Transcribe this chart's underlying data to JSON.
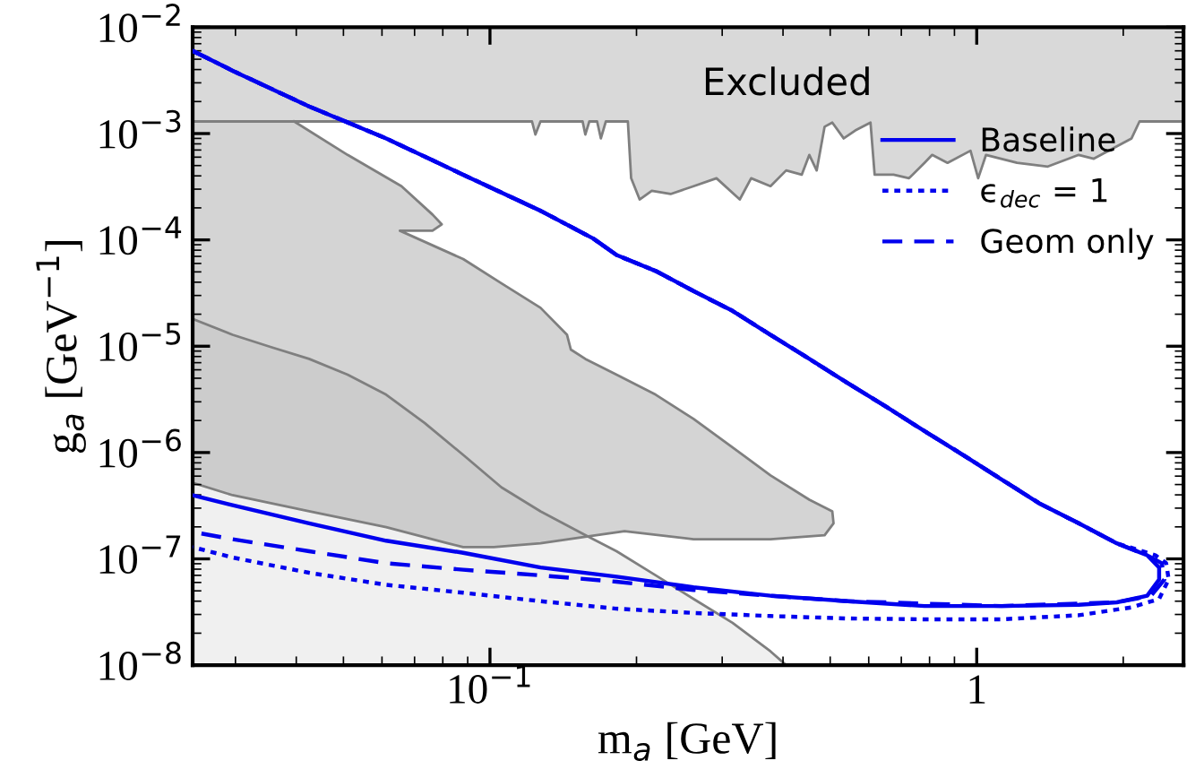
{
  "chart_data": {
    "type": "line",
    "xlabel": "m$_{a}$ [GeV]",
    "ylabel": "g$_{a}$ [GeV$^{−1}$]",
    "log": "xy",
    "xlim": [
      0.0245,
      2.66
    ],
    "ylim": [
      1e-08,
      0.01
    ],
    "xticks": [
      {
        "value": 0.1,
        "label": "10$^{−1}$"
      },
      1
    ],
    "yticks": [
      {
        "value": 1e-08,
        "label": "10$^{−8}$"
      },
      {
        "value": 1e-07,
        "label": "10$^{−7}$"
      },
      {
        "value": 1e-06,
        "label": "10$^{−6}$"
      },
      {
        "value": 1e-05,
        "label": "10$^{−5}$"
      },
      {
        "value": 0.0001,
        "label": "10$^{−4}$"
      },
      {
        "value": 0.001,
        "label": "10$^{−3}$"
      },
      {
        "value": 0.01,
        "label": "10$^{−2}$"
      }
    ],
    "legend": "right",
    "grid": false,
    "annotations": [
      "Excluded"
    ],
    "series": [
      {
        "type": "area",
        "color": "#d9d9d9",
        "x": [
          0.0245,
          0.122,
          0.124,
          0.127,
          0.155,
          0.157,
          0.16,
          0.166,
          0.169,
          0.173,
          0.192,
          0.195,
          0.203,
          0.215,
          0.235,
          0.262,
          0.292,
          0.326,
          0.344,
          0.377,
          0.406,
          0.437,
          0.453,
          0.469,
          0.487,
          0.505,
          0.533,
          0.563,
          0.605,
          0.617,
          0.675,
          0.726,
          0.781,
          0.81,
          0.871,
          0.971,
          1.007,
          1.045,
          1.21,
          1.4,
          1.62,
          1.74,
          2.08,
          2.16,
          2.66,
          2.66,
          0.0245
        ],
        "values": [
          0.0013,
          0.0013,
          0.00098,
          0.0013,
          0.0013,
          0.00098,
          0.0013,
          0.0013,
          0.0009,
          0.0013,
          0.0013,
          0.00038,
          0.00024,
          0.00029,
          0.00027,
          0.00032,
          0.00038,
          0.00024,
          0.00038,
          0.00032,
          0.00045,
          0.00041,
          0.00063,
          0.00045,
          0.00116,
          0.00127,
          0.0009,
          0.00107,
          0.00127,
          0.00041,
          0.00041,
          0.00038,
          0.00053,
          0.00063,
          0.00053,
          0.00069,
          0.00038,
          0.00063,
          0.00053,
          0.00049,
          0.00063,
          0.00058,
          0.0009,
          0.0013,
          0.0013,
          0.01,
          0.01
        ]
      },
      {
        "type": "area",
        "color": "#f0f0f0",
        "x": [
          0.0245,
          0.0296,
          0.0355,
          0.0425,
          0.051,
          0.0612,
          0.0734,
          0.0881,
          0.1056,
          0.127,
          0.157,
          0.182,
          0.219,
          0.262,
          0.315,
          0.377,
          0.406,
          0.0245
        ],
        "values": [
          1.81e-05,
          1.28e-05,
          9.8e-06,
          7.6e-06,
          5.4e-06,
          3.5e-06,
          1.9e-06,
          9.5e-07,
          4.7e-07,
          2.8e-07,
          1.67e-07,
          1.18e-07,
          7e-08,
          4.2e-08,
          2.5e-08,
          1.35e-08,
          1e-08,
          1e-08
        ]
      },
      {
        "type": "area",
        "color": "#a0a0a0",
        "x": [
          0.0396,
          0.051,
          0.0658,
          0.0762,
          0.0796,
          0.0762,
          0.0653,
          0.0881,
          0.1056,
          0.127,
          0.144,
          0.1466,
          0.157,
          0.182,
          0.219,
          0.262,
          0.315,
          0.377,
          0.453,
          0.505,
          0.508,
          0.487,
          0.377,
          0.262,
          0.189,
          0.157,
          0.127,
          0.1018,
          0.0881,
          0.0819,
          0.0612,
          0.0425,
          0.0296,
          0.0245,
          0.0245
        ],
        "values": [
          0.0013,
          0.00063,
          0.00032,
          0.000173,
          0.00014,
          0.000122,
          0.000122,
          6.6e-05,
          3.9e-05,
          2.3e-05,
          1.28e-05,
          9.3e-06,
          7.6e-06,
          5.4e-06,
          3.5e-06,
          2.07e-06,
          1.12e-06,
          6.1e-07,
          3.6e-07,
          2.8e-07,
          2.16e-07,
          1.67e-07,
          1.53e-07,
          1.53e-07,
          1.82e-07,
          1.61e-07,
          1.4e-07,
          1.29e-07,
          1.29e-07,
          1.4e-07,
          1.99e-07,
          2.8e-07,
          3.97e-07,
          5.2e-07,
          0.0013
        ]
      },
      {
        "name": "Baseline",
        "color": "#0000ee",
        "line_style": "solid",
        "x": [
          0.0245,
          0.0296,
          0.0425,
          0.0612,
          0.0881,
          0.127,
          0.163,
          0.182,
          0.219,
          0.262,
          0.315,
          0.377,
          0.453,
          0.543,
          0.651,
          0.781,
          0.937,
          1.124,
          1.349,
          1.62,
          1.94,
          2.24,
          2.37,
          2.37,
          2.24,
          1.94,
          1.62,
          1.124,
          0.781,
          0.543,
          0.377,
          0.262,
          0.182,
          0.127,
          0.0881,
          0.0612,
          0.0425,
          0.0296,
          0.0245
        ],
        "values": [
          0.006,
          0.0039,
          0.0018,
          0.0009,
          0.00041,
          0.000188,
          0.000103,
          7.2e-05,
          5.1e-05,
          3.3e-05,
          2.15e-05,
          1.28e-05,
          7.6e-06,
          4.5e-06,
          2.7e-06,
          1.59e-06,
          9.5e-07,
          5.6e-07,
          3.3e-07,
          2.16e-07,
          1.4e-07,
          1.08e-07,
          8.3e-08,
          6.4e-08,
          4.5e-08,
          3.9e-08,
          3.7e-08,
          3.6e-08,
          3.6e-08,
          4e-08,
          4.5e-08,
          5.4e-08,
          6.8e-08,
          8.3e-08,
          1.14e-07,
          1.48e-07,
          2.16e-07,
          3.2e-07,
          3.97e-07
        ]
      },
      {
        "name": "ϵ$_{dec}$ = 1",
        "color": "#0000ee",
        "line_style": "dotted",
        "x": [
          0.0245,
          0.0296,
          0.0425,
          0.0612,
          0.0881,
          0.127,
          0.163,
          0.182,
          0.219,
          0.262,
          0.315,
          0.377,
          0.453,
          0.543,
          0.651,
          0.781,
          0.937,
          1.124,
          1.349,
          1.62,
          1.94,
          2.33,
          2.45,
          2.48,
          2.37,
          2.08,
          1.62,
          1.124,
          0.781,
          0.543,
          0.377,
          0.262,
          0.182,
          0.127,
          0.0881,
          0.0612,
          0.0425,
          0.0296,
          0.0245
        ],
        "values": [
          0.006,
          0.0039,
          0.0018,
          0.0009,
          0.00041,
          0.000188,
          0.000103,
          7.2e-05,
          5.1e-05,
          3.3e-05,
          2.15e-05,
          1.28e-05,
          7.6e-06,
          4.5e-06,
          2.7e-06,
          1.59e-06,
          9.5e-07,
          5.6e-07,
          3.3e-07,
          2.16e-07,
          1.4e-07,
          1.08e-07,
          9.1e-08,
          6.4e-08,
          4.2e-08,
          3.5e-08,
          2.95e-08,
          2.7e-08,
          2.7e-08,
          2.75e-08,
          2.9e-08,
          3.1e-08,
          3.4e-08,
          4e-08,
          4.8e-08,
          5.7e-08,
          7.4e-08,
          1.03e-07,
          1.29e-07
        ]
      },
      {
        "name": "Geom only",
        "color": "#0000ee",
        "line_style": "dashed",
        "x": [
          0.0245,
          0.0296,
          0.0425,
          0.0612,
          0.0881,
          0.127,
          0.163,
          0.182,
          0.219,
          0.262,
          0.315,
          0.377,
          0.453,
          0.543,
          0.651,
          0.781,
          0.937,
          1.124,
          1.349,
          1.62,
          1.94,
          2.24,
          2.4,
          2.43,
          2.28,
          1.94,
          1.124,
          0.543,
          0.377,
          0.262,
          0.182,
          0.127,
          0.0881,
          0.0612,
          0.0425,
          0.0296,
          0.0245
        ],
        "values": [
          0.006,
          0.0039,
          0.0018,
          0.0009,
          0.00041,
          0.000188,
          0.000103,
          7.2e-05,
          5.1e-05,
          3.3e-05,
          2.15e-05,
          1.28e-05,
          7.6e-06,
          4.5e-06,
          2.7e-06,
          1.59e-06,
          9.5e-07,
          5.6e-07,
          3.3e-07,
          2.16e-07,
          1.4e-07,
          1.08e-07,
          9.1e-08,
          6.4e-08,
          4.5e-08,
          3.9e-08,
          3.6e-08,
          4e-08,
          4.5e-08,
          5.1e-08,
          6.1e-08,
          7e-08,
          7.9e-08,
          9.1e-08,
          1.18e-07,
          1.53e-07,
          1.79e-07
        ]
      }
    ]
  }
}
